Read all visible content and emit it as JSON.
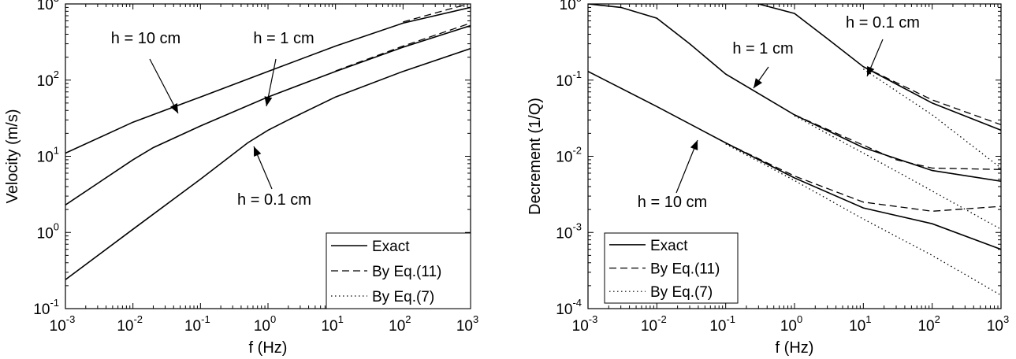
{
  "chart_data": [
    {
      "type": "line",
      "xlabel": "f (Hz)",
      "ylabel": "Velocity (m/s)",
      "xscale": "log",
      "yscale": "log",
      "xlim": [
        0.001,
        1000
      ],
      "ylim": [
        0.1,
        1000
      ],
      "grid": false,
      "legend_position": "bottom-right",
      "x_ticks": [
        {
          "base": "10",
          "exp": "-3"
        },
        {
          "base": "10",
          "exp": "-2"
        },
        {
          "base": "10",
          "exp": "-1"
        },
        {
          "base": "10",
          "exp": "0"
        },
        {
          "base": "10",
          "exp": "1"
        },
        {
          "base": "10",
          "exp": "2"
        },
        {
          "base": "10",
          "exp": "3"
        }
      ],
      "y_ticks": [
        {
          "base": "10",
          "exp": "-1"
        },
        {
          "base": "10",
          "exp": "0"
        },
        {
          "base": "10",
          "exp": "1"
        },
        {
          "base": "10",
          "exp": "2"
        },
        {
          "base": "10",
          "exp": "3"
        }
      ],
      "legend": [
        {
          "label": "Exact",
          "style": "solid"
        },
        {
          "label": "By Eq.(11)",
          "style": "dashed"
        },
        {
          "label": "By Eq.(7)",
          "style": "dotted"
        }
      ],
      "annotations": [
        {
          "text": "h = 10 cm",
          "target_x": 0.05,
          "target_y": 35
        },
        {
          "text": "h = 1 cm",
          "target_x": 0.6,
          "target_y": 60
        },
        {
          "text": "h = 0.1 cm",
          "target_x": 0.6,
          "target_y": 16
        }
      ],
      "series": [
        {
          "name": "h = 10 cm",
          "style": "solid",
          "x": [
            0.001,
            0.01,
            0.1,
            1,
            10,
            100,
            1000
          ],
          "y": [
            11,
            28,
            60,
            130,
            280,
            560,
            900
          ]
        },
        {
          "name": "h = 10 cm",
          "style": "dashed",
          "x": [
            100,
            300,
            1000
          ],
          "y": [
            580,
            760,
            1020
          ]
        },
        {
          "name": "h = 1 cm",
          "style": "solid",
          "x": [
            0.001,
            0.01,
            0.02,
            0.1,
            1,
            10,
            100,
            1000
          ],
          "y": [
            2.3,
            9,
            13,
            25,
            60,
            130,
            270,
            520
          ]
        },
        {
          "name": "h = 1 cm",
          "style": "dashed",
          "x": [
            10,
            100,
            1000
          ],
          "y": [
            132,
            280,
            560
          ]
        },
        {
          "name": "h = 0.1 cm",
          "style": "solid",
          "x": [
            0.001,
            0.01,
            0.1,
            0.5,
            1,
            2,
            10,
            100,
            1000
          ],
          "y": [
            0.24,
            1.1,
            5,
            15,
            22,
            30,
            60,
            130,
            260
          ]
        }
      ]
    },
    {
      "type": "line",
      "xlabel": "f (Hz)",
      "ylabel": "Decrement (1/Q)",
      "xscale": "log",
      "yscale": "log",
      "xlim": [
        0.001,
        1000
      ],
      "ylim": [
        0.0001,
        1
      ],
      "grid": false,
      "legend_position": "bottom-left",
      "x_ticks": [
        {
          "base": "10",
          "exp": "-3"
        },
        {
          "base": "10",
          "exp": "-2"
        },
        {
          "base": "10",
          "exp": "-1"
        },
        {
          "base": "10",
          "exp": "0"
        },
        {
          "base": "10",
          "exp": "1"
        },
        {
          "base": "10",
          "exp": "2"
        },
        {
          "base": "10",
          "exp": "3"
        }
      ],
      "y_ticks": [
        {
          "base": "10",
          "exp": "-4"
        },
        {
          "base": "10",
          "exp": "-3"
        },
        {
          "base": "10",
          "exp": "-2"
        },
        {
          "base": "10",
          "exp": "-1"
        },
        {
          "base": "10",
          "exp": "0"
        }
      ],
      "legend": [
        {
          "label": "Exact",
          "style": "solid"
        },
        {
          "label": "By Eq.(11)",
          "style": "dashed"
        },
        {
          "label": "By Eq.(7)",
          "style": "dotted"
        }
      ],
      "annotations": [
        {
          "text": "h = 0.1 cm",
          "target_x": 10,
          "target_y": 0.15
        },
        {
          "text": "h = 1 cm",
          "target_x": 0.18,
          "target_y": 0.14
        },
        {
          "text": "h = 10 cm",
          "target_x": 0.035,
          "target_y": 0.02
        }
      ],
      "series": [
        {
          "name": "h = 0.1 cm",
          "style": "solid",
          "x": [
            0.001,
            0.01,
            0.1,
            0.3,
            1,
            3,
            10,
            100,
            1000
          ],
          "y": [
            1.1,
            1.1,
            1.07,
            1.0,
            0.75,
            0.35,
            0.15,
            0.05,
            0.022
          ]
        },
        {
          "name": "h = 0.1 cm",
          "style": "dashed",
          "x": [
            10,
            100,
            1000
          ],
          "y": [
            0.15,
            0.055,
            0.026
          ]
        },
        {
          "name": "h = 0.1 cm",
          "style": "dotted",
          "x": [
            10,
            100,
            1000
          ],
          "y": [
            0.14,
            0.035,
            0.007
          ]
        },
        {
          "name": "h = 1 cm",
          "style": "solid",
          "x": [
            0.001,
            0.003,
            0.01,
            0.03,
            0.1,
            1,
            10,
            100,
            1000
          ],
          "y": [
            1.0,
            0.9,
            0.65,
            0.3,
            0.12,
            0.035,
            0.013,
            0.0065,
            0.0047
          ]
        },
        {
          "name": "h = 1 cm",
          "style": "dashed",
          "x": [
            1,
            10,
            30,
            100,
            1000
          ],
          "y": [
            0.035,
            0.014,
            0.009,
            0.007,
            0.0067
          ]
        },
        {
          "name": "h = 1 cm",
          "style": "dotted",
          "x": [
            1,
            10,
            100,
            1000
          ],
          "y": [
            0.034,
            0.011,
            0.0035,
            0.0011
          ]
        },
        {
          "name": "h = 10 cm",
          "style": "solid",
          "x": [
            0.001,
            0.01,
            0.1,
            1,
            10,
            100,
            1000
          ],
          "y": [
            0.13,
            0.045,
            0.015,
            0.0052,
            0.0021,
            0.0013,
            0.0006
          ]
        },
        {
          "name": "h = 10 cm",
          "style": "dashed",
          "x": [
            0.1,
            1,
            10,
            100,
            1000
          ],
          "y": [
            0.015,
            0.0055,
            0.0025,
            0.0019,
            0.0022
          ]
        },
        {
          "name": "h = 10 cm",
          "style": "dotted",
          "x": [
            0.1,
            1,
            10,
            100,
            1000
          ],
          "y": [
            0.0145,
            0.0048,
            0.0015,
            0.0005,
            0.00015
          ]
        }
      ]
    }
  ]
}
